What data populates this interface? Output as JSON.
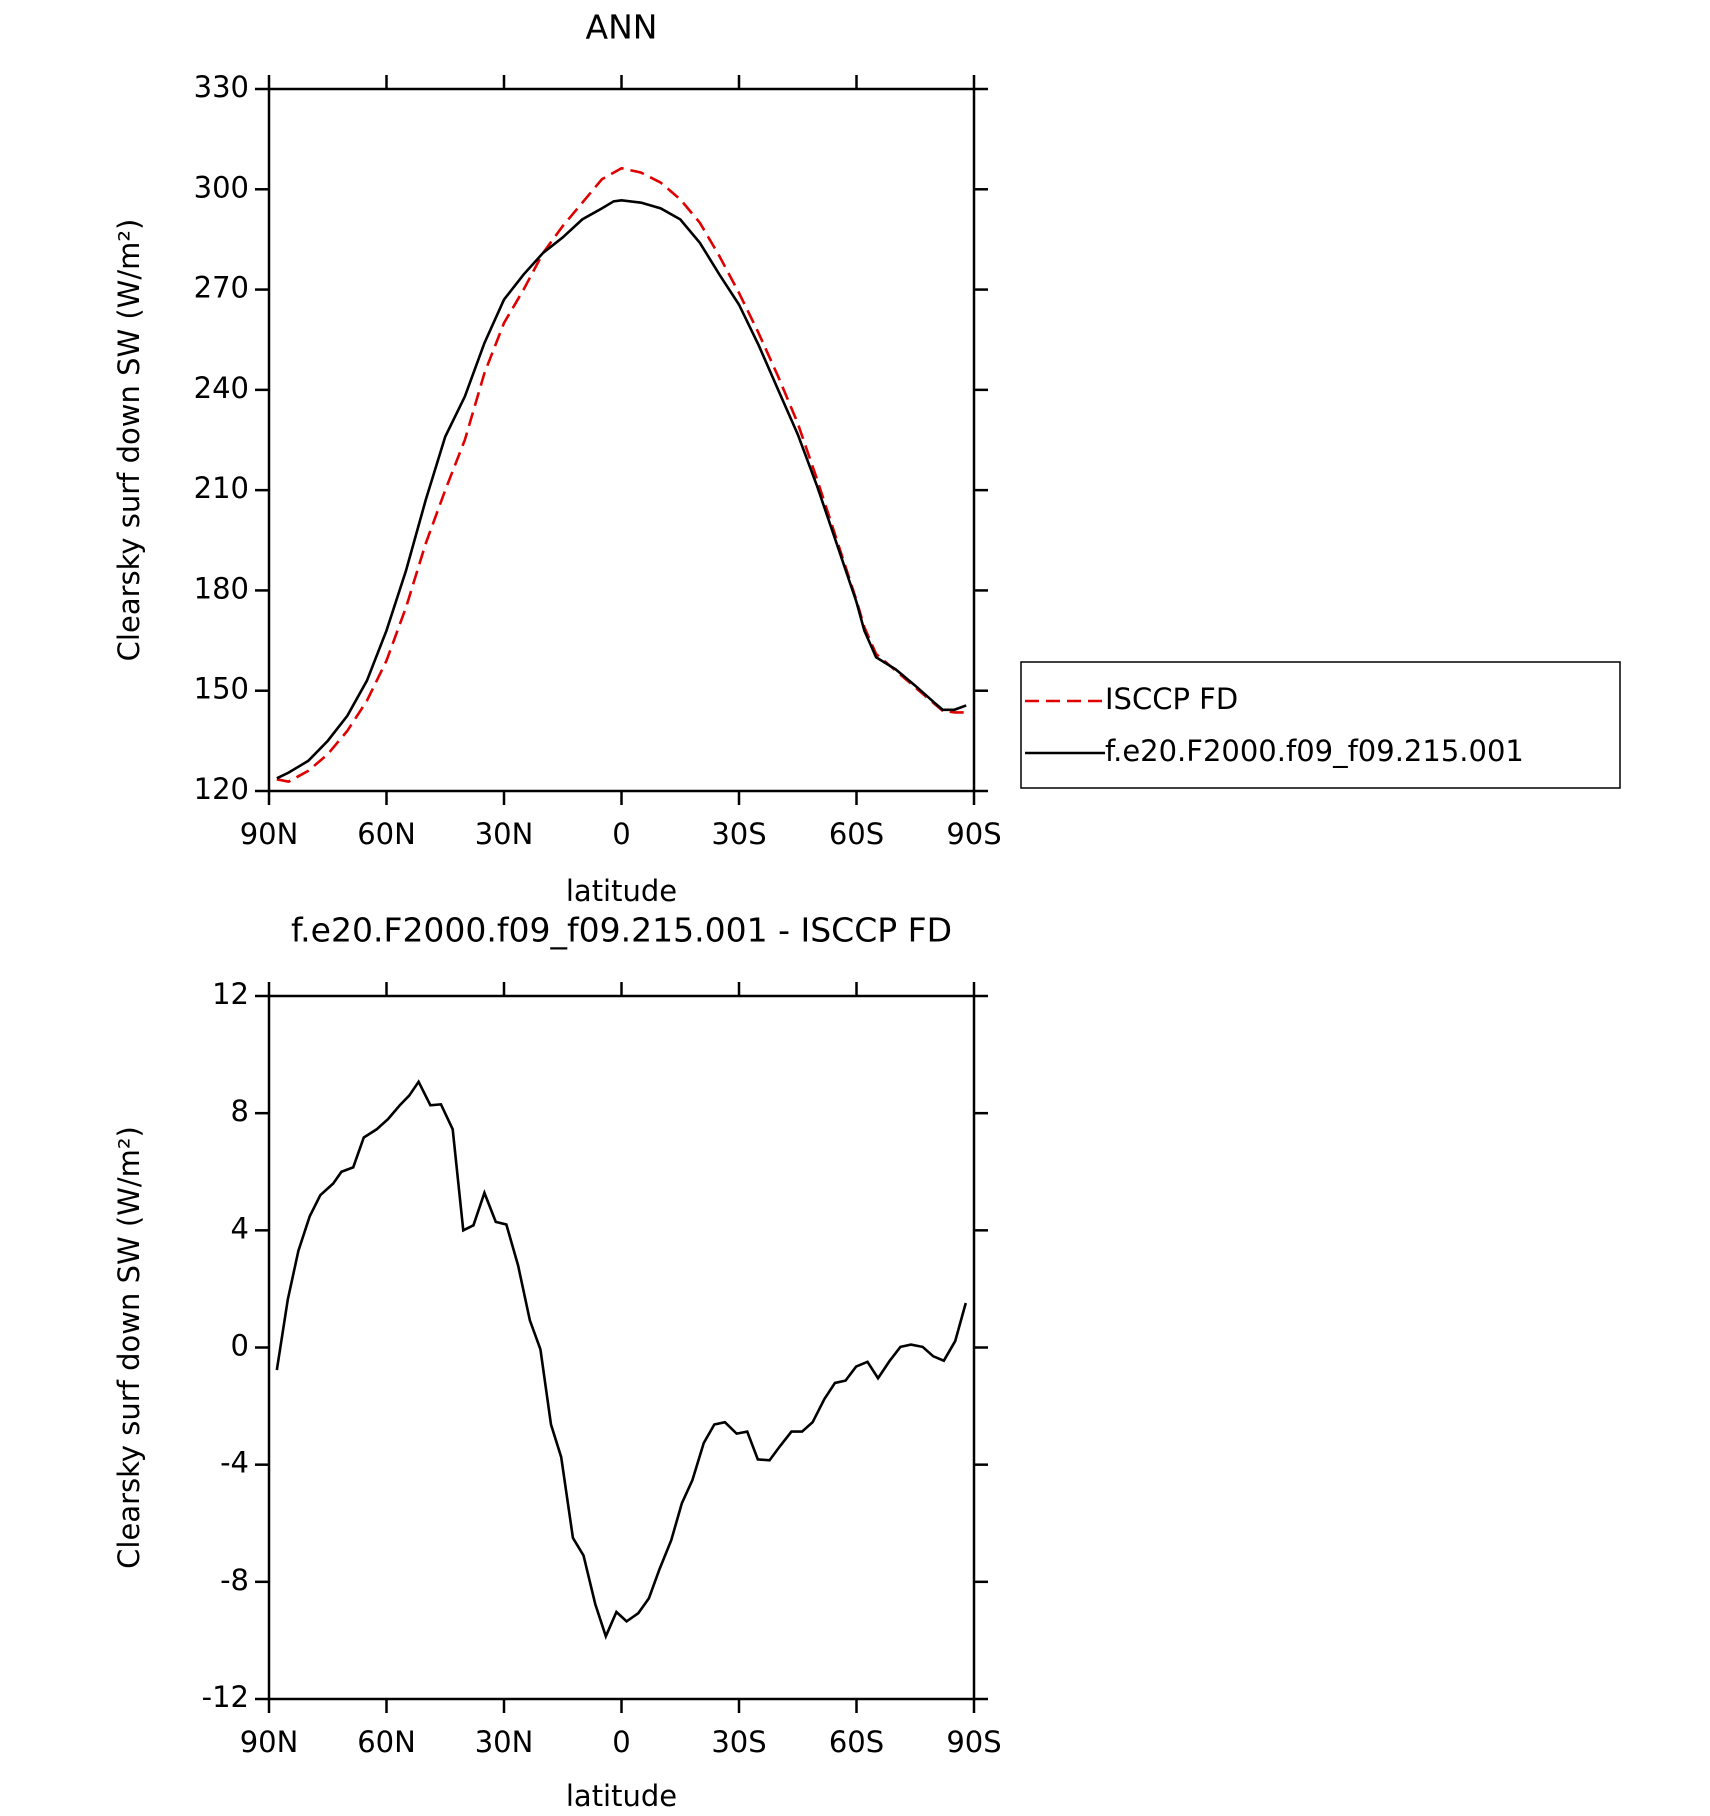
{
  "chart_data": [
    {
      "type": "line",
      "title": "ANN",
      "xlabel": "latitude",
      "ylabel": "Clearsky surf down SW (W/m²)",
      "x": [
        88,
        85,
        80,
        75,
        70,
        65,
        60,
        55,
        50,
        45,
        40,
        35,
        30,
        25,
        20,
        15,
        10,
        5,
        2,
        0,
        -5,
        -10,
        -15,
        -20,
        -25,
        -30,
        -35,
        -40,
        -45,
        -50,
        -55,
        -60,
        -62,
        -65,
        -70,
        -75,
        -80,
        -82,
        -85,
        -88
      ],
      "series": [
        {
          "name": "ISCCP FD",
          "color": "#e00000",
          "linestyle": "dashed",
          "values": [
            123.5,
            122.8,
            126,
            131,
            138,
            147,
            159,
            175,
            194,
            210,
            225,
            245,
            260,
            270,
            281,
            289,
            296,
            303,
            305,
            306.3,
            305,
            302,
            297,
            290,
            280,
            269,
            257,
            244,
            230,
            213,
            195,
            177,
            169,
            161,
            156,
            151,
            146,
            144,
            143.5,
            143.5
          ]
        },
        {
          "name": "f.e20.F2000.f09_f09.215.001",
          "color": "#000000",
          "linestyle": "solid",
          "values": [
            123.8,
            125.5,
            129,
            135,
            142.5,
            153,
            168,
            186,
            207,
            226,
            238,
            254,
            267,
            274.5,
            281,
            285.6,
            291,
            294.3,
            296.4,
            296.7,
            296,
            294.3,
            291,
            284,
            274.5,
            265.5,
            253.4,
            240,
            226.7,
            211,
            193.8,
            176.5,
            168,
            160,
            156.4,
            151.5,
            146.3,
            144.3,
            144.3,
            145.6
          ]
        }
      ],
      "xlim": [
        90,
        -90
      ],
      "xticks": [
        {
          "value": 90,
          "label": "90N"
        },
        {
          "value": 60,
          "label": "60N"
        },
        {
          "value": 30,
          "label": "30N"
        },
        0,
        {
          "value": -30,
          "label": "30S"
        },
        {
          "value": -60,
          "label": "60S"
        },
        {
          "value": -90,
          "label": "90S"
        }
      ],
      "ylim": [
        120,
        330
      ],
      "yticks": [
        120,
        150,
        180,
        210,
        240,
        270,
        300,
        330
      ],
      "legend": "right"
    },
    {
      "type": "line",
      "title": "f.e20.F2000.f09_f09.215.001 - ISCCP FD",
      "xlabel": "latitude",
      "ylabel": "Clearsky surf down SW (W/m²)",
      "x": [
        88,
        85.2,
        82.5,
        79.6,
        76.9,
        73.6,
        71.5,
        68.5,
        65.8,
        62.5,
        59.6,
        56.6,
        54.2,
        51.8,
        48.8,
        46.1,
        43.1,
        40.4,
        37.8,
        35,
        32.1,
        29.4,
        26.4,
        23.4,
        20.7,
        18,
        15.4,
        12.4,
        9.7,
        6.7,
        4,
        1.3,
        -1.3,
        -4.3,
        -7,
        -9.7,
        -12.7,
        -15.4,
        -18.1,
        -21,
        -23.7,
        -26.4,
        -29.4,
        -32.1,
        -34.8,
        -37.8,
        -40.4,
        -43.4,
        -46.1,
        -48.8,
        -51.8,
        -54.5,
        -57.2,
        -59.9,
        -62.8,
        -65.5,
        -68.5,
        -71.2,
        -73.9,
        -76.9,
        -79.6,
        -82.3,
        -85.2,
        -87.9
      ],
      "values": [
        -0.77,
        1.64,
        3.3,
        4.48,
        5.2,
        5.6,
        6.0,
        6.15,
        7.17,
        7.45,
        7.8,
        8.27,
        8.6,
        9.07,
        8.27,
        8.3,
        7.45,
        4.0,
        4.17,
        5.28,
        4.29,
        4.2,
        2.8,
        0.93,
        -0.06,
        -2.63,
        -3.74,
        -6.5,
        -7.1,
        -8.76,
        -9.86,
        -9.03,
        -9.35,
        -9.07,
        -8.56,
        -7.57,
        -6.58,
        -5.32,
        -4.53,
        -3.26,
        -2.63,
        -2.55,
        -2.94,
        -2.87,
        -3.82,
        -3.85,
        -3.38,
        -2.87,
        -2.87,
        -2.55,
        -1.76,
        -1.21,
        -1.13,
        -0.65,
        -0.49,
        -1.05,
        -0.45,
        0.02,
        0.1,
        0.02,
        -0.3,
        -0.45,
        0.22,
        1.52
      ],
      "color": "#000000",
      "xlim": [
        90,
        -90
      ],
      "xticks": [
        {
          "value": 90,
          "label": "90N"
        },
        {
          "value": 60,
          "label": "60N"
        },
        {
          "value": 30,
          "label": "30N"
        },
        0,
        {
          "value": -30,
          "label": "30S"
        },
        {
          "value": -60,
          "label": "60S"
        },
        {
          "value": -90,
          "label": "90S"
        }
      ],
      "ylim": [
        -12,
        12
      ],
      "yticks": [
        -12,
        -8,
        -4,
        0,
        4,
        8,
        12
      ]
    }
  ]
}
